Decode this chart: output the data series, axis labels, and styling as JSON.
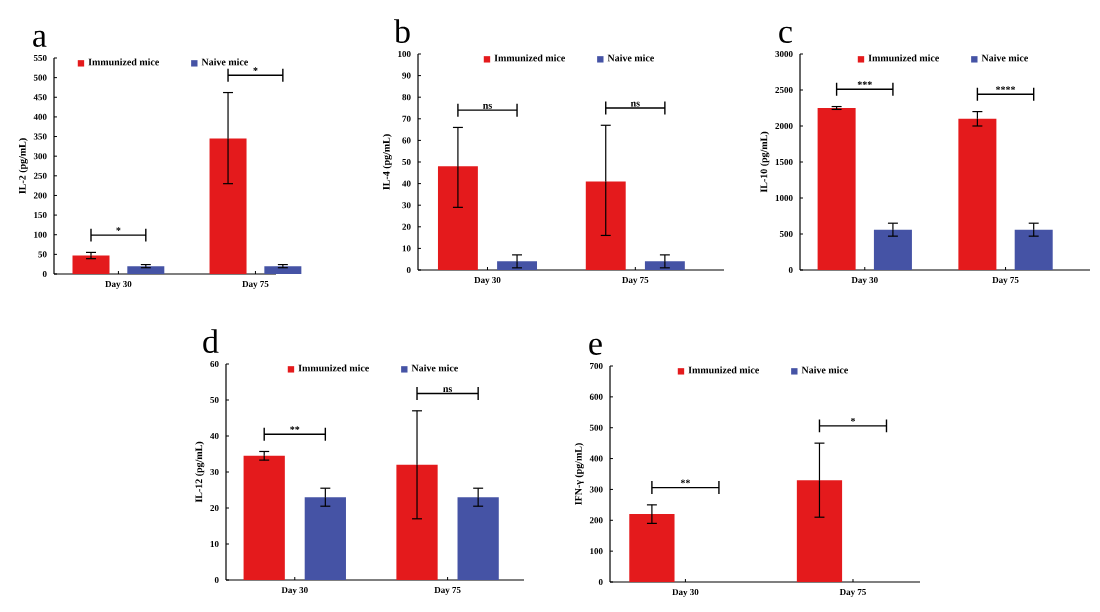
{
  "chart_data": [
    {
      "type": "bar",
      "title": "a",
      "ylabel": "IL-2 (pg/mL)",
      "categories": [
        "Day 30",
        "Day 75"
      ],
      "ylim": [
        0,
        550
      ],
      "yticks": [
        0,
        50,
        100,
        150,
        200,
        250,
        300,
        350,
        400,
        450,
        500,
        550
      ],
      "legend": "top",
      "annotations": [
        "*",
        "*"
      ],
      "series": [
        {
          "name": "Immunized mice",
          "color": "#e41a1c",
          "values": [
            47,
            345
          ],
          "errors": [
            8,
            [
              230,
              462
            ]
          ]
        },
        {
          "name": "Naive mice",
          "color": "#4553a5",
          "values": [
            20,
            20
          ],
          "errors": [
            4,
            4
          ]
        }
      ]
    },
    {
      "type": "bar",
      "title": "b",
      "ylabel": "IL-4 (pg/mL)",
      "categories": [
        "Day 30",
        "Day 75"
      ],
      "ylim": [
        0,
        100
      ],
      "yticks": [
        0,
        10,
        20,
        30,
        40,
        50,
        60,
        70,
        80,
        90,
        100
      ],
      "legend": "top",
      "annotations": [
        "ns",
        "ns"
      ],
      "series": [
        {
          "name": "Immunized mice",
          "color": "#e41a1c",
          "values": [
            48,
            41
          ],
          "errors": [
            [
              29,
              66
            ],
            [
              16,
              67
            ]
          ]
        },
        {
          "name": "Naive mice",
          "color": "#4553a5",
          "values": [
            4,
            4
          ],
          "errors": [
            3,
            3
          ]
        }
      ]
    },
    {
      "type": "bar",
      "title": "c",
      "ylabel": "IL-10 (pg/mL)",
      "categories": [
        "Day 30",
        "Day 75"
      ],
      "ylim": [
        0,
        3000
      ],
      "yticks": [
        0,
        500,
        1000,
        1500,
        2000,
        2500,
        3000
      ],
      "legend": "top",
      "annotations": [
        "***",
        "****"
      ],
      "series": [
        {
          "name": "Immunized mice",
          "color": "#e41a1c",
          "values": [
            2250,
            2100
          ],
          "errors": [
            20,
            100
          ]
        },
        {
          "name": "Naive mice",
          "color": "#4553a5",
          "values": [
            560,
            560
          ],
          "errors": [
            90,
            90
          ]
        }
      ]
    },
    {
      "type": "bar",
      "title": "d",
      "ylabel": "IL-12 (pg/mL)",
      "categories": [
        "Day 30",
        "Day 75"
      ],
      "ylim": [
        0,
        60
      ],
      "yticks": [
        0,
        10,
        20,
        30,
        40,
        50,
        60
      ],
      "legend": "top",
      "annotations": [
        "**",
        "ns"
      ],
      "series": [
        {
          "name": "Immunized mice",
          "color": "#e41a1c",
          "values": [
            34.5,
            32
          ],
          "errors": [
            1.2,
            [
              17,
              47
            ]
          ]
        },
        {
          "name": "Naive mice",
          "color": "#4553a5",
          "values": [
            23,
            23
          ],
          "errors": [
            2.5,
            2.5
          ]
        }
      ]
    },
    {
      "type": "bar",
      "title": "e",
      "ylabel": "IFN-γ (pg/mL)",
      "categories": [
        "Day 30",
        "Day 75"
      ],
      "ylim": [
        0,
        700
      ],
      "yticks": [
        0,
        100,
        200,
        300,
        400,
        500,
        600,
        700
      ],
      "legend": "top",
      "annotations": [
        "**",
        "*"
      ],
      "series": [
        {
          "name": "Immunized mice",
          "color": "#e41a1c",
          "values": [
            220,
            330
          ],
          "errors": [
            30,
            [
              210,
              450
            ]
          ]
        },
        {
          "name": "Naive mice",
          "color": "#4553a5",
          "values": [
            0,
            0
          ]
        }
      ]
    }
  ]
}
